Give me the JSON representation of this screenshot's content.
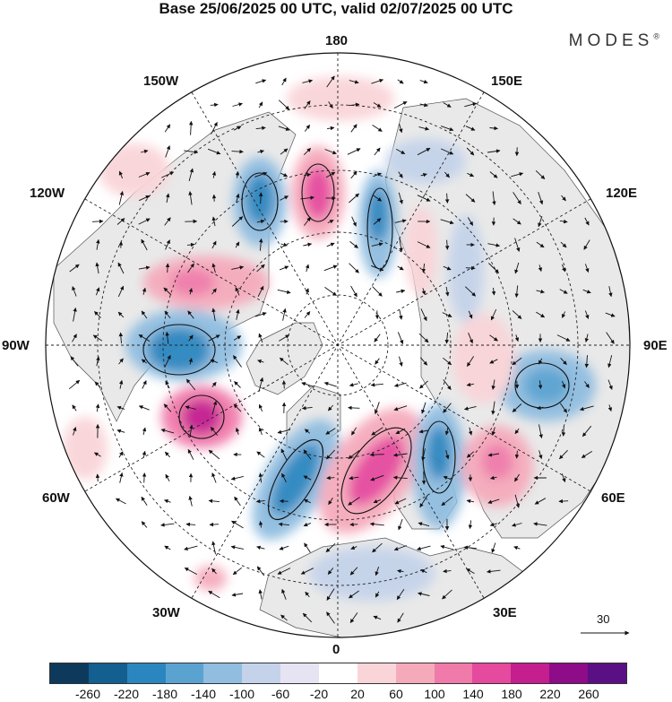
{
  "header": {
    "title": "Base 25/06/2025 00 UTC, valid 02/07/2025 00 UTC",
    "brand": "MODES",
    "brand_mark": "®"
  },
  "map": {
    "projection": "north-polar-stereographic",
    "labels": {
      "top": "180",
      "bottom": "0",
      "left": "90W",
      "right": "90E",
      "top_left": "150W",
      "top_right": "150E",
      "upper_left": "120W",
      "upper_right": "120E",
      "lower_left": "60W",
      "lower_right": "60E",
      "bottom_left": "30W",
      "bottom_right": "30E"
    },
    "wind_reference": {
      "label": "30"
    },
    "land_color": "#e9e9e9",
    "ocean_color": "#ffffff"
  },
  "colorbar": {
    "colors": [
      "#0d3a5c",
      "#135f8f",
      "#2b86bf",
      "#5aa3d1",
      "#90bde0",
      "#c4d3ea",
      "#e6e3f2",
      "#ffffff",
      "#f9d4d8",
      "#f5aabb",
      "#f07aaa",
      "#e54a9e",
      "#c41e8f",
      "#8e0c88",
      "#5a1084"
    ],
    "ticks": [
      "-260",
      "-220",
      "-180",
      "-140",
      "-100",
      "-60",
      "-20",
      "20",
      "60",
      "100",
      "140",
      "180",
      "220",
      "260"
    ]
  }
}
